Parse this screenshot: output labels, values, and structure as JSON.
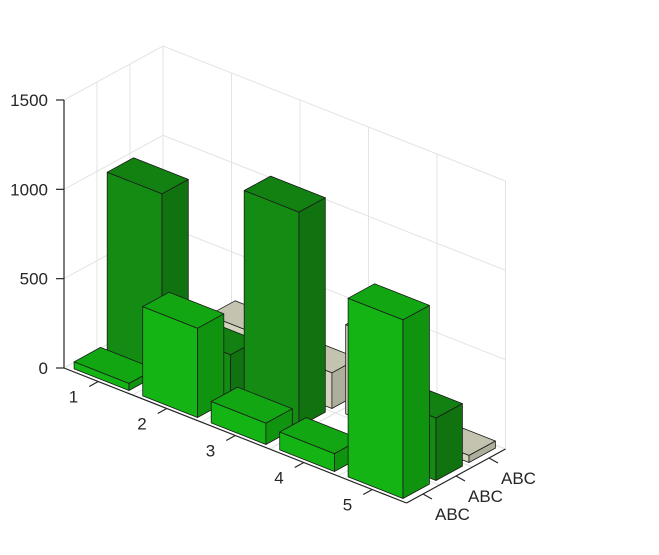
{
  "chart_data": {
    "type": "bar3d",
    "categories": [
      "1",
      "2",
      "3",
      "4",
      "5"
    ],
    "z_labels": [
      "ABC",
      "ABC",
      "ABC"
    ],
    "z_ticks": [
      0,
      500,
      1000,
      1500
    ],
    "zlim": [
      0,
      1500
    ],
    "grid": true,
    "series": [
      {
        "color": "#14b414",
        "values": [
          40,
          500,
          120,
          100,
          1000
        ]
      },
      {
        "color": "#148c14",
        "values": [
          1000,
          250,
          1200,
          0,
          350
        ]
      },
      {
        "color": "#d4d4be",
        "values": [
          0,
          250,
          200,
          500,
          40
        ]
      }
    ]
  }
}
